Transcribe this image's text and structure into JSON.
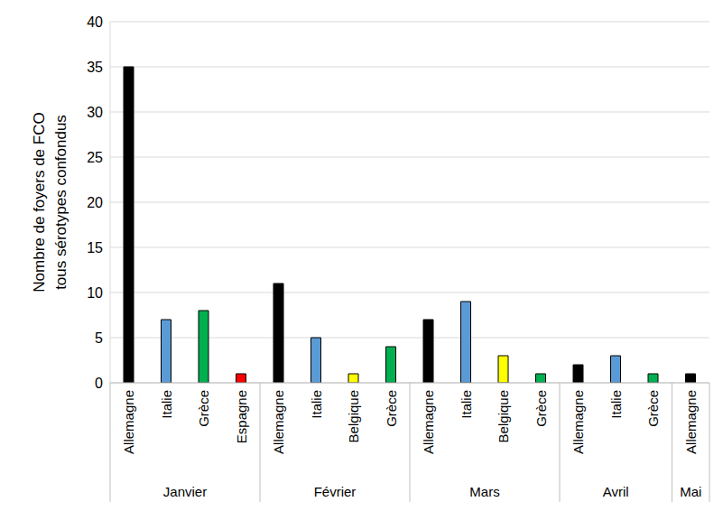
{
  "chart_data": {
    "type": "bar",
    "y_label": [
      "Nombre de foyers de FCO",
      "tous sérotypes confondus"
    ],
    "categories": [
      "Allemagne",
      "Italie",
      "Grèce",
      "Espagne",
      "Allemagne",
      "Italie",
      "Belgique",
      "Grèce",
      "Allemagne",
      "Italie",
      "Belgique",
      "Grèce",
      "Allemagne",
      "Italie",
      "Grèce",
      "Allemagne"
    ],
    "values": [
      35,
      7,
      8,
      1,
      11,
      5,
      1,
      4,
      7,
      9,
      3,
      1,
      2,
      3,
      1,
      1
    ],
    "colors": [
      "#000000",
      "#5b9bd5",
      "#00b050",
      "#ff0000",
      "#000000",
      "#5b9bd5",
      "#ffff00",
      "#00b050",
      "#000000",
      "#5b9bd5",
      "#ffff00",
      "#00b050",
      "#000000",
      "#5b9bd5",
      "#00b050",
      "#000000"
    ],
    "groups": [
      {
        "label": "Janvier",
        "size": 4
      },
      {
        "label": "Février",
        "size": 4
      },
      {
        "label": "Mars",
        "size": 4
      },
      {
        "label": "Avril",
        "size": 3
      },
      {
        "label": "Mai",
        "size": 1
      }
    ],
    "ylim": [
      0,
      40
    ],
    "yticks": [
      0,
      5,
      10,
      15,
      20,
      25,
      30,
      35,
      40
    ],
    "grid": true
  }
}
